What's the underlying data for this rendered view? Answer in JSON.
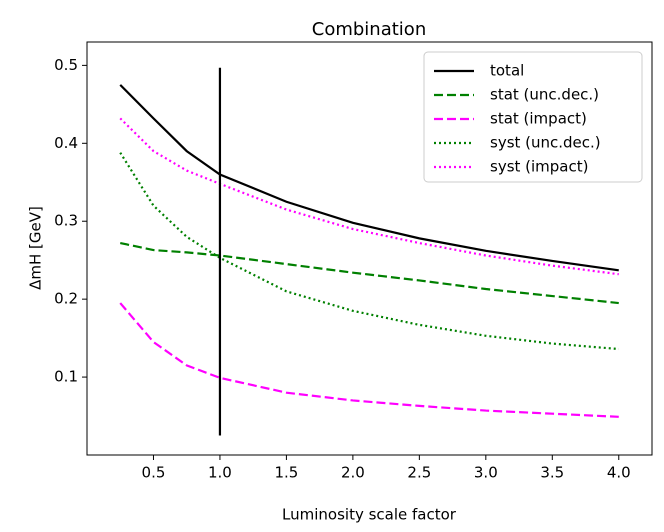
{
  "chart_data": {
    "type": "line",
    "title": "Combination",
    "xlabel": "Luminosity scale factor",
    "ylabel": "ΔmH [GeV]",
    "x": [
      0.25,
      0.5,
      0.75,
      1.0,
      1.5,
      2.0,
      2.5,
      3.0,
      3.5,
      4.0
    ],
    "series": [
      {
        "name": "total",
        "color": "#000000",
        "dash": "solid",
        "values": [
          0.475,
          0.432,
          0.39,
          0.36,
          0.325,
          0.298,
          0.278,
          0.262,
          0.249,
          0.237
        ]
      },
      {
        "name": "stat (unc.dec.)",
        "color": "#008000",
        "dash": "dashed",
        "values": [
          0.272,
          0.263,
          0.26,
          0.256,
          0.245,
          0.234,
          0.224,
          0.213,
          0.204,
          0.195
        ]
      },
      {
        "name": "stat (impact)",
        "color": "#ff00ff",
        "dash": "dashed",
        "values": [
          0.195,
          0.145,
          0.115,
          0.099,
          0.08,
          0.07,
          0.063,
          0.057,
          0.053,
          0.049
        ]
      },
      {
        "name": "syst (unc.dec.)",
        "color": "#008000",
        "dash": "dotted",
        "values": [
          0.388,
          0.32,
          0.28,
          0.253,
          0.21,
          0.185,
          0.167,
          0.153,
          0.143,
          0.136
        ]
      },
      {
        "name": "syst (impact)",
        "color": "#ff00ff",
        "dash": "dotted",
        "values": [
          0.432,
          0.39,
          0.365,
          0.348,
          0.315,
          0.29,
          0.272,
          0.256,
          0.243,
          0.232
        ]
      }
    ],
    "vline": {
      "x": 1.0,
      "ymin": 0.025,
      "ymax": 0.497,
      "color": "#000000"
    },
    "xlim": [
      0.0,
      4.25
    ],
    "ylim": [
      0.0,
      0.53
    ],
    "xticks": [
      0.5,
      {
        "value": 1.0,
        "label": "1.0"
      },
      1.5,
      {
        "value": 2.0,
        "label": "2.0"
      },
      2.5,
      {
        "value": 3.0,
        "label": "3.0"
      },
      3.5,
      {
        "value": 4.0,
        "label": "4.0"
      }
    ],
    "yticks": [
      0.1,
      0.2,
      0.3,
      0.4,
      0.5
    ],
    "legend": "upper right",
    "grid": false
  }
}
